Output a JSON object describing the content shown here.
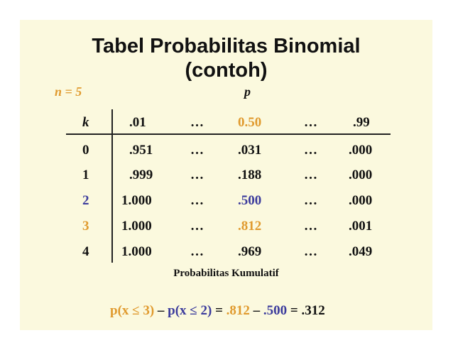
{
  "title_line1": "Tabel Probabilitas Binomial",
  "title_line2": "(contoh)",
  "n_label": "n = 5",
  "p_label": "p",
  "header": [
    "k",
    ".01",
    "…",
    "0.50",
    "…",
    ".99"
  ],
  "rows": [
    [
      "0",
      ".951",
      "…",
      ".031",
      "…",
      ".000"
    ],
    [
      "1",
      ".999",
      "…",
      ".188",
      "…",
      ".000"
    ],
    [
      "2",
      "1.000",
      "…",
      ".500",
      "…",
      ".000"
    ],
    [
      "3",
      "1.000",
      "…",
      ".812",
      "…",
      ".001"
    ],
    [
      "4",
      "1.000",
      "…",
      ".969",
      "…",
      ".049"
    ]
  ],
  "caption": "Probabilitas Kumulatif",
  "formula": {
    "part1": "p(x ≤ 3)",
    "minus1": " – ",
    "part2": "p(x ≤ 2)",
    "eq1": " = ",
    "v1": ".812",
    "minus2": " – ",
    "v2": ".500",
    "eq2": " = .312"
  },
  "colors": {
    "background": "#fbf9de",
    "highlight_orange": "#e09a2e",
    "highlight_blue": "#3b3b9c"
  }
}
